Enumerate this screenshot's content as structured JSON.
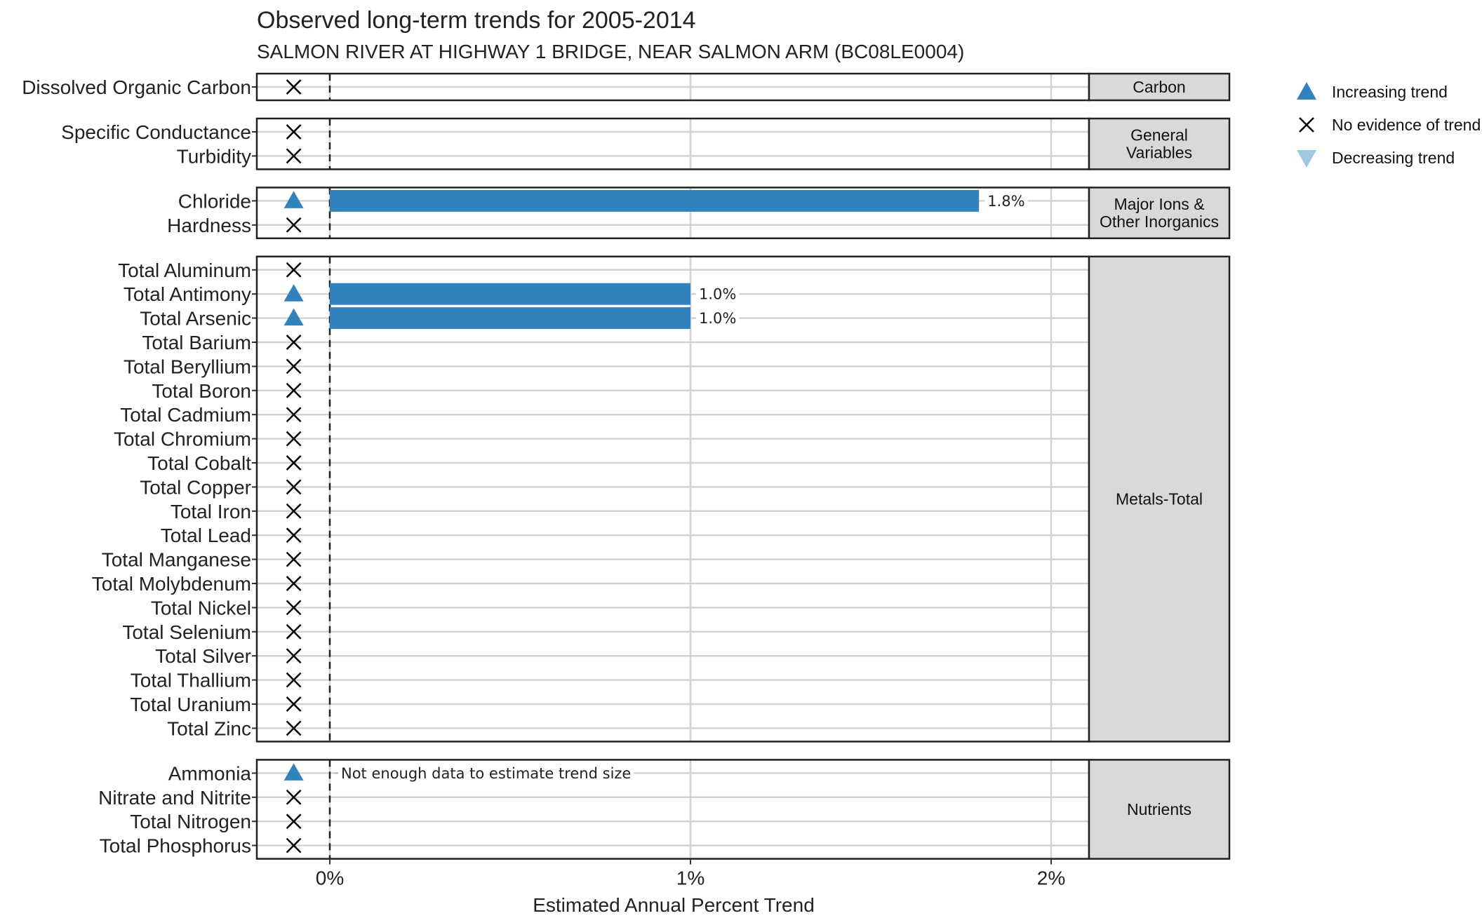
{
  "chart_data": {
    "type": "bar",
    "title": "Observed long-term trends for 2005-2014",
    "subtitle": "SALMON RIVER AT HIGHWAY 1 BRIDGE, NEAR SALMON ARM (BC08LE0004)",
    "xlabel": "Estimated Annual Percent Trend",
    "x_ticks": [
      "0%",
      "1%",
      "2%"
    ],
    "x_tick_values": [
      0,
      1,
      2
    ],
    "xlim": [
      -0.2,
      2.1
    ],
    "grid": true,
    "legend_placement": "top-right",
    "legend": [
      {
        "key": "increasing",
        "label": "Increasing trend"
      },
      {
        "key": "none",
        "label": "No evidence of trend"
      },
      {
        "key": "decreasing",
        "label": "Decreasing trend"
      }
    ],
    "colors": {
      "increasing": "#3182BD",
      "decreasing": "#9ECAE1",
      "none": "#000000",
      "bar": "#3182BD",
      "strip_fill": "#D9D9D9",
      "gridline": "#D3D3D3"
    },
    "panels": [
      {
        "name": "Carbon",
        "strip_lines": [
          "Carbon"
        ],
        "rows": [
          {
            "label": "Dissolved Organic Carbon",
            "trend": "none",
            "value": null,
            "value_label": ""
          }
        ]
      },
      {
        "name": "General Variables",
        "strip_lines": [
          "General",
          "Variables"
        ],
        "rows": [
          {
            "label": "Specific Conductance",
            "trend": "none",
            "value": null,
            "value_label": ""
          },
          {
            "label": "Turbidity",
            "trend": "none",
            "value": null,
            "value_label": ""
          }
        ]
      },
      {
        "name": "Major Ions & Other Inorganics",
        "strip_lines": [
          "Major Ions &",
          "Other Inorganics"
        ],
        "rows": [
          {
            "label": "Chloride",
            "trend": "increasing",
            "value": 1.8,
            "value_label": "1.8%"
          },
          {
            "label": "Hardness",
            "trend": "none",
            "value": null,
            "value_label": ""
          }
        ]
      },
      {
        "name": "Metals-Total",
        "strip_lines": [
          "Metals-Total"
        ],
        "rows": [
          {
            "label": "Total Aluminum",
            "trend": "none",
            "value": null,
            "value_label": ""
          },
          {
            "label": "Total Antimony",
            "trend": "increasing",
            "value": 1.0,
            "value_label": "1.0%"
          },
          {
            "label": "Total Arsenic",
            "trend": "increasing",
            "value": 1.0,
            "value_label": "1.0%"
          },
          {
            "label": "Total Barium",
            "trend": "none",
            "value": null,
            "value_label": ""
          },
          {
            "label": "Total Beryllium",
            "trend": "none",
            "value": null,
            "value_label": ""
          },
          {
            "label": "Total Boron",
            "trend": "none",
            "value": null,
            "value_label": ""
          },
          {
            "label": "Total Cadmium",
            "trend": "none",
            "value": null,
            "value_label": ""
          },
          {
            "label": "Total Chromium",
            "trend": "none",
            "value": null,
            "value_label": ""
          },
          {
            "label": "Total Cobalt",
            "trend": "none",
            "value": null,
            "value_label": ""
          },
          {
            "label": "Total Copper",
            "trend": "none",
            "value": null,
            "value_label": ""
          },
          {
            "label": "Total Iron",
            "trend": "none",
            "value": null,
            "value_label": ""
          },
          {
            "label": "Total Lead",
            "trend": "none",
            "value": null,
            "value_label": ""
          },
          {
            "label": "Total Manganese",
            "trend": "none",
            "value": null,
            "value_label": ""
          },
          {
            "label": "Total Molybdenum",
            "trend": "none",
            "value": null,
            "value_label": ""
          },
          {
            "label": "Total Nickel",
            "trend": "none",
            "value": null,
            "value_label": ""
          },
          {
            "label": "Total Selenium",
            "trend": "none",
            "value": null,
            "value_label": ""
          },
          {
            "label": "Total Silver",
            "trend": "none",
            "value": null,
            "value_label": ""
          },
          {
            "label": "Total Thallium",
            "trend": "none",
            "value": null,
            "value_label": ""
          },
          {
            "label": "Total Uranium",
            "trend": "none",
            "value": null,
            "value_label": ""
          },
          {
            "label": "Total Zinc",
            "trend": "none",
            "value": null,
            "value_label": ""
          }
        ]
      },
      {
        "name": "Nutrients",
        "strip_lines": [
          "Nutrients"
        ],
        "rows": [
          {
            "label": "Ammonia",
            "trend": "increasing",
            "value": null,
            "value_label": "Not enough data to estimate trend size"
          },
          {
            "label": "Nitrate and Nitrite",
            "trend": "none",
            "value": null,
            "value_label": ""
          },
          {
            "label": "Total Nitrogen",
            "trend": "none",
            "value": null,
            "value_label": ""
          },
          {
            "label": "Total Phosphorus",
            "trend": "none",
            "value": null,
            "value_label": ""
          }
        ]
      }
    ]
  }
}
